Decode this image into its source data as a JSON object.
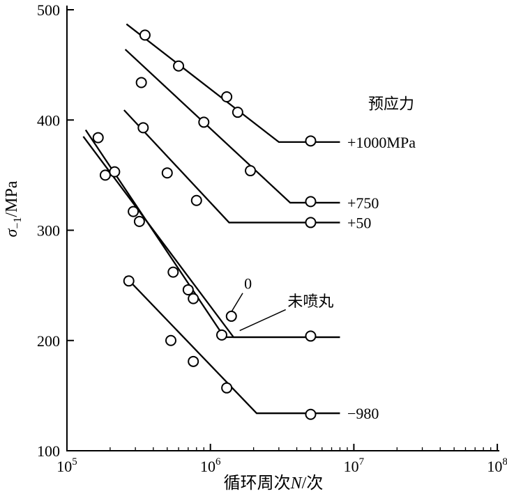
{
  "chart_data": {
    "type": "line",
    "xscale": "log",
    "xlim": [
      100000,
      100000000
    ],
    "ylim": [
      100,
      500
    ],
    "grid": false,
    "xtick_exponents": [
      5,
      6,
      7,
      8
    ],
    "yticks": [
      100,
      200,
      300,
      400,
      500
    ],
    "xlabel": {
      "pre": "循环周次",
      "var": "N",
      "post": "/次"
    },
    "ylabel": {
      "var": "σ",
      "sub": "−1",
      "unit": "/MPa"
    },
    "legend_title": "预应力",
    "series": [
      {
        "label": "+1000MPa",
        "line": [
          [
            260000,
            487
          ],
          [
            3000000,
            380
          ],
          [
            8000000,
            380
          ]
        ],
        "points": [
          [
            350000,
            477
          ],
          [
            600000,
            449
          ],
          [
            1300000,
            421
          ],
          [
            1550000,
            407
          ],
          [
            5000000,
            381
          ]
        ],
        "label_pos": [
          9000000,
          380
        ]
      },
      {
        "label": "+750",
        "line": [
          [
            255000,
            464
          ],
          [
            3600000,
            325
          ],
          [
            8000000,
            325
          ]
        ],
        "points": [
          [
            330000,
            434
          ],
          [
            900000,
            398
          ],
          [
            1900000,
            354
          ],
          [
            5000000,
            326
          ]
        ],
        "label_pos": [
          9000000,
          325
        ]
      },
      {
        "label": "+50",
        "line": [
          [
            250000,
            409
          ],
          [
            1350000,
            307
          ],
          [
            8000000,
            307
          ]
        ],
        "points": [
          [
            340000,
            393
          ],
          [
            500000,
            352
          ],
          [
            800000,
            327
          ],
          [
            5000000,
            307
          ]
        ],
        "label_pos": [
          9000000,
          307
        ]
      },
      {
        "label": "0",
        "line": [
          [
            135000,
            391
          ],
          [
            1250000,
            203
          ],
          [
            8000000,
            203
          ]
        ],
        "points": [
          [
            290000,
            317
          ],
          [
            550000,
            262
          ],
          [
            700000,
            246
          ],
          [
            760000,
            238
          ],
          [
            1400000,
            222
          ]
        ],
        "label_pos": [
          1720000,
          252
        ],
        "leader": [
          [
            1680000,
            243
          ],
          [
            1300000,
            219
          ]
        ]
      },
      {
        "label": "未喷丸",
        "line": [
          [
            130000,
            385
          ],
          [
            1450000,
            203
          ],
          [
            8000000,
            203
          ]
        ],
        "points": [
          [
            165000,
            384
          ],
          [
            185000,
            350
          ],
          [
            215000,
            353
          ],
          [
            320000,
            308
          ],
          [
            1200000,
            205
          ],
          [
            5000000,
            204
          ]
        ],
        "label_pos": [
          3450000,
          236
        ],
        "leader": [
          [
            3350000,
            228
          ],
          [
            1600000,
            209
          ]
        ]
      },
      {
        "label": "−980",
        "line": [
          [
            255000,
            258
          ],
          [
            2100000,
            134
          ],
          [
            8000000,
            134
          ]
        ],
        "points": [
          [
            270000,
            254
          ],
          [
            530000,
            200
          ],
          [
            760000,
            181
          ],
          [
            1300000,
            157
          ],
          [
            5000000,
            133
          ]
        ],
        "label_pos": [
          9000000,
          134
        ]
      }
    ],
    "annotations": [
      {
        "text": "预应力",
        "pos": [
          12600000,
          415
        ]
      }
    ]
  }
}
